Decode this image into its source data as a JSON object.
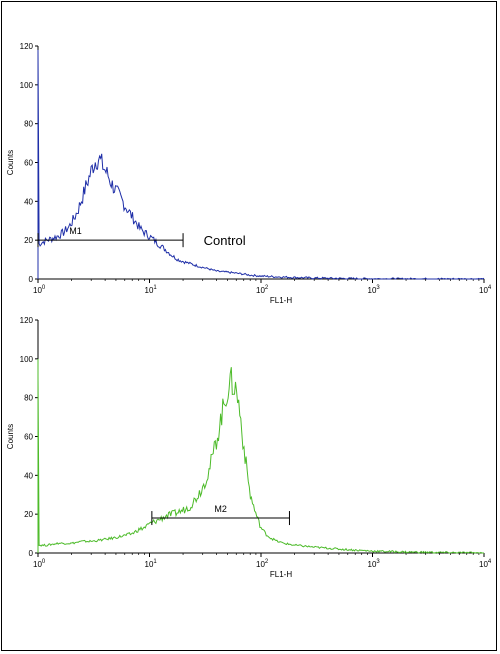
{
  "chart_data": [
    {
      "type": "line",
      "title": "",
      "xlabel": "FL1-H",
      "ylabel": "Counts",
      "xscale": "log",
      "xlim": [
        1,
        10000
      ],
      "ylim": [
        0,
        120
      ],
      "x_tick_labels": [
        {
          "base": "10",
          "exp": "0"
        },
        {
          "base": "10",
          "exp": "1"
        },
        {
          "base": "10",
          "exp": "2"
        },
        {
          "base": "10",
          "exp": "3"
        },
        {
          "base": "10",
          "exp": "4"
        }
      ],
      "y_ticks": [
        0,
        20,
        40,
        60,
        80,
        100,
        120
      ],
      "color": "#1f2fa8",
      "series": [
        {
          "x": [
            1,
            1.02,
            1.1,
            1.2,
            1.35,
            1.5,
            1.7,
            1.9,
            2.1,
            2.3,
            2.5,
            2.7,
            2.9,
            3.1,
            3.3,
            3.5,
            3.7,
            3.9,
            4.2,
            4.5,
            4.8,
            5.2,
            5.6,
            6,
            6.5,
            7,
            7.6,
            8.2,
            9,
            10,
            11,
            12,
            14,
            16,
            18,
            20,
            23,
            26,
            30,
            35,
            40,
            50,
            60,
            70,
            80,
            100,
            130,
            160,
            200,
            300,
            500,
            1000,
            3000,
            10000
          ],
          "y": [
            118,
            18,
            19,
            20,
            21,
            22,
            24,
            27,
            31,
            36,
            42,
            48,
            53,
            58,
            61,
            62,
            60,
            57,
            54,
            50,
            47,
            44,
            41,
            38,
            35,
            32,
            29,
            26,
            24,
            22,
            20,
            18,
            15,
            12,
            10,
            9,
            8,
            7,
            6,
            5,
            4,
            3.5,
            3,
            2.5,
            2,
            1.5,
            1.2,
            1,
            0.8,
            0.5,
            0.3,
            0.1,
            0.05,
            0
          ]
        }
      ],
      "gate": {
        "label": "M1",
        "x_start": 1,
        "x_end": 20,
        "y": 20
      },
      "annotation": {
        "text": "Control",
        "x": 22,
        "y": 20
      }
    },
    {
      "type": "line",
      "title": "",
      "xlabel": "FL1-H",
      "ylabel": "Counts",
      "xscale": "log",
      "xlim": [
        1,
        10000
      ],
      "ylim": [
        0,
        120
      ],
      "x_tick_labels": [
        {
          "base": "10",
          "exp": "0"
        },
        {
          "base": "10",
          "exp": "1"
        },
        {
          "base": "10",
          "exp": "2"
        },
        {
          "base": "10",
          "exp": "3"
        },
        {
          "base": "10",
          "exp": "4"
        }
      ],
      "y_ticks": [
        0,
        20,
        40,
        60,
        80,
        100,
        120
      ],
      "color": "#4dbb2a",
      "series": [
        {
          "x": [
            1,
            1.02,
            1.2,
            1.5,
            2,
            2.5,
            3,
            4,
            5,
            6,
            7,
            8,
            9,
            10,
            11,
            12,
            14,
            16,
            18,
            20,
            23,
            26,
            30,
            34,
            38,
            42,
            46,
            50,
            54,
            58,
            62,
            66,
            70,
            75,
            80,
            90,
            100,
            110,
            120,
            140,
            160,
            180,
            200,
            250,
            300,
            400,
            500,
            700,
            1000,
            2000,
            5000,
            10000
          ],
          "y": [
            100,
            4,
            4,
            5,
            5,
            6,
            6,
            7,
            8,
            9,
            10,
            12,
            13,
            15,
            16,
            17,
            19,
            20,
            21,
            22,
            24,
            28,
            34,
            42,
            53,
            64,
            75,
            84,
            88,
            86,
            80,
            68,
            55,
            42,
            30,
            20,
            13,
            10,
            8,
            6,
            5,
            4.5,
            4,
            3.5,
            3,
            2.5,
            2,
            1.5,
            1,
            0.5,
            0.2,
            0
          ]
        }
      ],
      "gate": {
        "label": "M2",
        "x_start": 10.5,
        "x_end": 180,
        "y": 18
      }
    }
  ]
}
